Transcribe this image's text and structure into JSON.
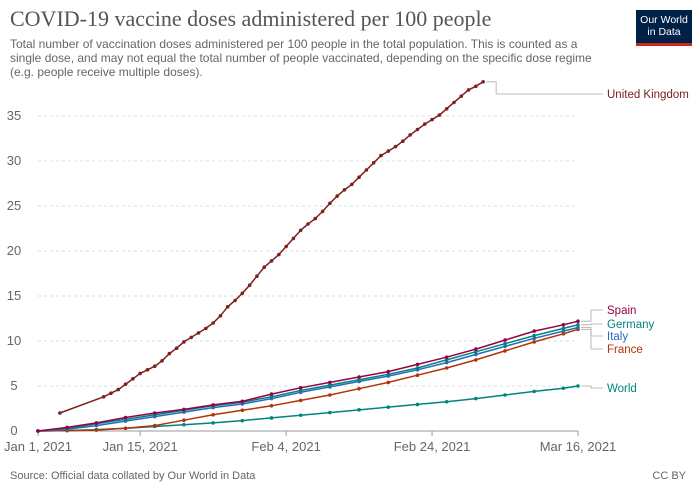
{
  "header": {
    "title": "COVID-19 vaccine doses administered per 100 people",
    "subtitle": "Total number of vaccination doses administered per 100 people in the total population. This is counted as a single dose, and may not equal the total number of people vaccinated, depending on the specific dose regime (e.g. people receive multiple doses).",
    "logo_line1": "Our World",
    "logo_line2": "in Data"
  },
  "footer": {
    "source": "Source: Official data collated by Our World in Data",
    "license": "CC BY"
  },
  "chart_data": {
    "type": "line",
    "title": "COVID-19 vaccine doses administered per 100 people",
    "xlabel": "",
    "ylabel": "",
    "x_ticks": [
      {
        "day": 0,
        "label": "Jan 1, 2021"
      },
      {
        "day": 14,
        "label": "Jan 15, 2021"
      },
      {
        "day": 34,
        "label": "Feb 4, 2021"
      },
      {
        "day": 54,
        "label": "Feb 24, 2021"
      },
      {
        "day": 74,
        "label": "Mar 16, 2021"
      }
    ],
    "x_range": [
      "Jan 1, 2021",
      "Mar 16, 2021"
    ],
    "y_ticks": [
      0,
      5,
      10,
      15,
      20,
      25,
      30,
      35
    ],
    "ylim": [
      0,
      39
    ],
    "grid": true,
    "legend": "right end labels",
    "series": [
      {
        "name": "United Kingdom",
        "color": "#7d2020",
        "points": [
          [
            3,
            2
          ],
          [
            9,
            3.8
          ],
          [
            10,
            4.2
          ],
          [
            11,
            4.6
          ],
          [
            12,
            5.2
          ],
          [
            13,
            5.8
          ],
          [
            14,
            6.4
          ],
          [
            15,
            6.8
          ],
          [
            16,
            7.2
          ],
          [
            17,
            7.8
          ],
          [
            18,
            8.6
          ],
          [
            19,
            9.2
          ],
          [
            20,
            9.9
          ],
          [
            21,
            10.4
          ],
          [
            22,
            10.9
          ],
          [
            23,
            11.4
          ],
          [
            24,
            12
          ],
          [
            25,
            12.8
          ],
          [
            26,
            13.8
          ],
          [
            27,
            14.5
          ],
          [
            28,
            15.3
          ],
          [
            29,
            16.2
          ],
          [
            30,
            17.2
          ],
          [
            31,
            18.2
          ],
          [
            32,
            18.9
          ],
          [
            33,
            19.6
          ],
          [
            34,
            20.5
          ],
          [
            35,
            21.4
          ],
          [
            36,
            22.3
          ],
          [
            37,
            23
          ],
          [
            38,
            23.6
          ],
          [
            39,
            24.4
          ],
          [
            40,
            25.3
          ],
          [
            41,
            26.1
          ],
          [
            42,
            26.8
          ],
          [
            43,
            27.4
          ],
          [
            44,
            28.2
          ],
          [
            45,
            29
          ],
          [
            46,
            29.8
          ],
          [
            47,
            30.6
          ],
          [
            48,
            31.1
          ],
          [
            49,
            31.6
          ],
          [
            50,
            32.2
          ],
          [
            51,
            32.9
          ],
          [
            52,
            33.5
          ],
          [
            53,
            34.1
          ],
          [
            54,
            34.6
          ],
          [
            55,
            35.1
          ],
          [
            56,
            35.8
          ],
          [
            57,
            36.5
          ],
          [
            58,
            37.2
          ],
          [
            59,
            37.9
          ],
          [
            60,
            38.3
          ],
          [
            61,
            38.8
          ]
        ]
      },
      {
        "name": "Spain",
        "color": "#970046",
        "points": [
          [
            0,
            0
          ],
          [
            4,
            0.4
          ],
          [
            8,
            0.9
          ],
          [
            12,
            1.5
          ],
          [
            16,
            2
          ],
          [
            20,
            2.4
          ],
          [
            24,
            2.9
          ],
          [
            28,
            3.3
          ],
          [
            32,
            4.1
          ],
          [
            36,
            4.8
          ],
          [
            40,
            5.4
          ],
          [
            44,
            6
          ],
          [
            48,
            6.6
          ],
          [
            52,
            7.4
          ],
          [
            56,
            8.2
          ],
          [
            60,
            9.1
          ],
          [
            64,
            10.1
          ],
          [
            68,
            11.1
          ],
          [
            72,
            11.8
          ],
          [
            74,
            12.2
          ]
        ]
      },
      {
        "name": "Germany",
        "color": "#00847e",
        "points": [
          [
            0,
            0
          ],
          [
            4,
            0.3
          ],
          [
            8,
            0.8
          ],
          [
            12,
            1.3
          ],
          [
            16,
            1.8
          ],
          [
            20,
            2.3
          ],
          [
            24,
            2.8
          ],
          [
            28,
            3.2
          ],
          [
            32,
            3.8
          ],
          [
            36,
            4.5
          ],
          [
            40,
            5.1
          ],
          [
            44,
            5.7
          ],
          [
            48,
            6.3
          ],
          [
            52,
            7
          ],
          [
            56,
            7.9
          ],
          [
            60,
            8.8
          ],
          [
            64,
            9.7
          ],
          [
            68,
            10.6
          ],
          [
            72,
            11.4
          ],
          [
            74,
            11.8
          ]
        ]
      },
      {
        "name": "Italy",
        "color": "#286bbb",
        "points": [
          [
            0,
            0
          ],
          [
            4,
            0.2
          ],
          [
            8,
            0.6
          ],
          [
            12,
            1.1
          ],
          [
            16,
            1.6
          ],
          [
            20,
            2.1
          ],
          [
            24,
            2.6
          ],
          [
            28,
            3
          ],
          [
            32,
            3.6
          ],
          [
            36,
            4.3
          ],
          [
            40,
            4.9
          ],
          [
            44,
            5.5
          ],
          [
            48,
            6.1
          ],
          [
            52,
            6.8
          ],
          [
            56,
            7.6
          ],
          [
            60,
            8.5
          ],
          [
            64,
            9.4
          ],
          [
            68,
            10.3
          ],
          [
            72,
            11.1
          ],
          [
            74,
            11.5
          ]
        ]
      },
      {
        "name": "France",
        "color": "#b13507",
        "points": [
          [
            0,
            0
          ],
          [
            4,
            0.05
          ],
          [
            8,
            0.1
          ],
          [
            12,
            0.3
          ],
          [
            16,
            0.6
          ],
          [
            20,
            1.2
          ],
          [
            24,
            1.8
          ],
          [
            28,
            2.3
          ],
          [
            32,
            2.8
          ],
          [
            36,
            3.4
          ],
          [
            40,
            4
          ],
          [
            44,
            4.7
          ],
          [
            48,
            5.4
          ],
          [
            52,
            6.2
          ],
          [
            56,
            7
          ],
          [
            60,
            7.9
          ],
          [
            64,
            8.9
          ],
          [
            68,
            9.9
          ],
          [
            72,
            10.8
          ],
          [
            74,
            11.3
          ]
        ]
      },
      {
        "name": "World",
        "color": "#00847e",
        "points": [
          [
            0,
            0
          ],
          [
            4,
            0.05
          ],
          [
            8,
            0.15
          ],
          [
            12,
            0.3
          ],
          [
            16,
            0.5
          ],
          [
            20,
            0.7
          ],
          [
            24,
            0.9
          ],
          [
            28,
            1.15
          ],
          [
            32,
            1.45
          ],
          [
            36,
            1.75
          ],
          [
            40,
            2.05
          ],
          [
            44,
            2.35
          ],
          [
            48,
            2.65
          ],
          [
            52,
            2.95
          ],
          [
            56,
            3.25
          ],
          [
            60,
            3.6
          ],
          [
            64,
            4
          ],
          [
            68,
            4.4
          ],
          [
            72,
            4.75
          ],
          [
            74,
            5
          ]
        ]
      }
    ]
  }
}
